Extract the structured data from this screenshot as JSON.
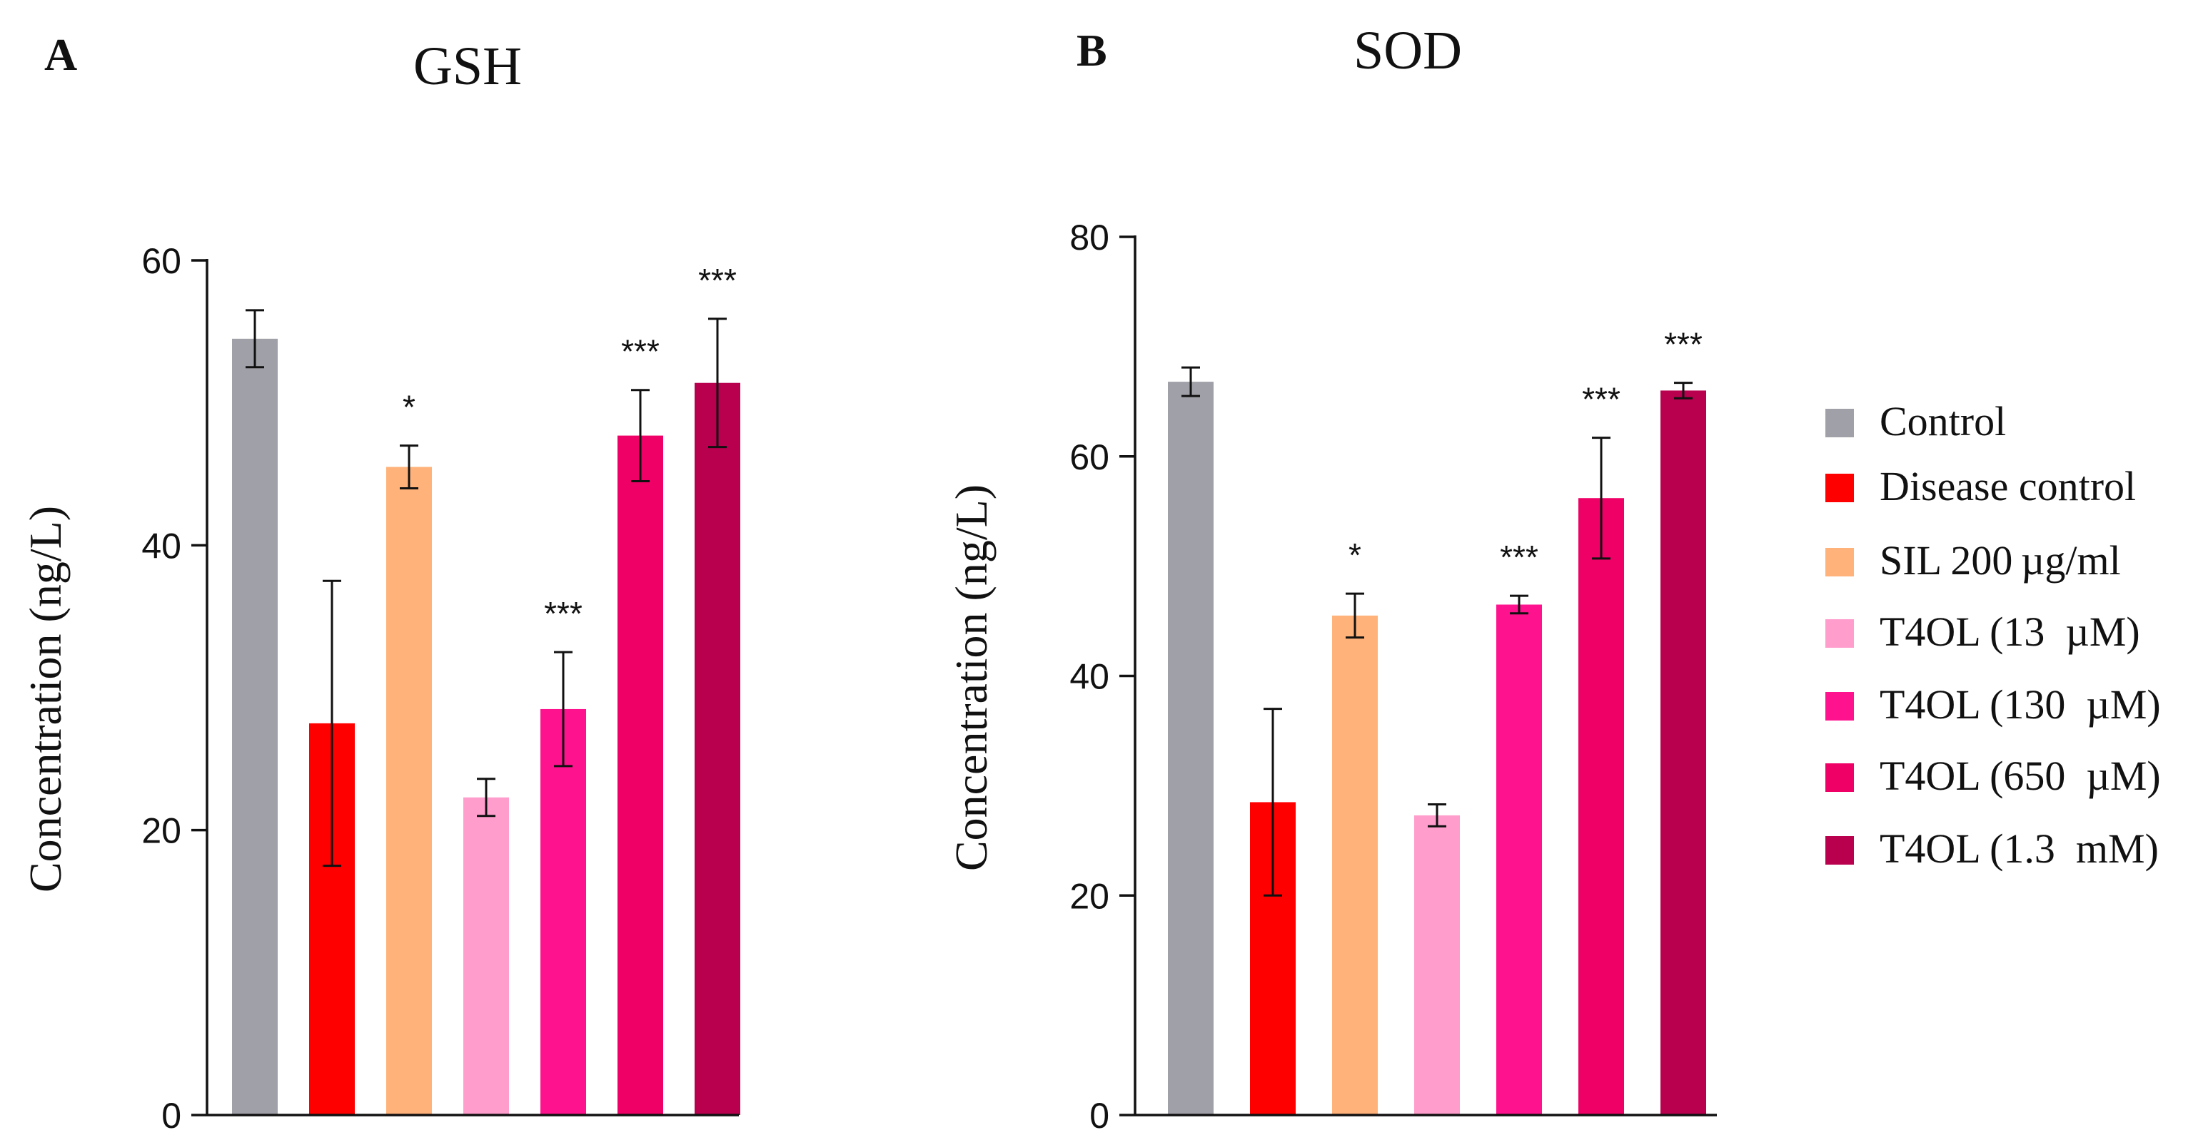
{
  "legend": {
    "items": [
      {
        "label": "Control",
        "color": "#A0A0A8"
      },
      {
        "label": "Disease control",
        "color": "#FF0000"
      },
      {
        "label": "SIL 200 µg/ml",
        "color": "#FFB27A"
      },
      {
        "label": "T4OL (13  µM)",
        "color": "#FF9ECD"
      },
      {
        "label": "T4OL (130  µM)",
        "color": "#FF128E"
      },
      {
        "label": "T4OL (650  µM)",
        "color": "#EE0066"
      },
      {
        "label": "T4OL (1.3  mM)",
        "color": "#B8004E"
      }
    ]
  },
  "chart_data": [
    {
      "type": "bar",
      "panel_label": "A",
      "title": "GSH",
      "ylabel": "Concentration (ng/L)",
      "xlabel": "",
      "ylim": [
        0,
        60
      ],
      "yticks": [
        0,
        20,
        40,
        60
      ],
      "categories": [
        "Control",
        "Disease control",
        "SIL 200 µg/ml",
        "T4OL (13  µM)",
        "T4OL (130  µM)",
        "T4OL (650  µM)",
        "T4OL (1.3  mM)"
      ],
      "values": [
        54.5,
        27.5,
        45.5,
        22.3,
        28.5,
        47.7,
        51.4
      ],
      "errors": [
        2.0,
        10.0,
        1.5,
        1.3,
        4.0,
        3.2,
        4.5
      ],
      "significance": [
        "",
        "",
        "*",
        "",
        "***",
        "***",
        "***"
      ]
    },
    {
      "type": "bar",
      "panel_label": "B",
      "title": "SOD",
      "ylabel": "Concentration (ng/L)",
      "xlabel": "",
      "ylim": [
        0,
        80
      ],
      "yticks": [
        0,
        20,
        40,
        60,
        80
      ],
      "categories": [
        "Control",
        "Disease control",
        "SIL 200 µg/ml",
        "T4OL (13  µM)",
        "T4OL (130  µM)",
        "T4OL (650  µM)",
        "T4OL (1.3  mM)"
      ],
      "values": [
        66.8,
        28.5,
        45.5,
        27.3,
        46.5,
        56.2,
        66.0
      ],
      "errors": [
        1.3,
        8.5,
        2.0,
        1.0,
        0.8,
        5.5,
        0.7
      ],
      "significance": [
        "",
        "",
        "*",
        "",
        "***",
        "***",
        "***"
      ]
    }
  ]
}
